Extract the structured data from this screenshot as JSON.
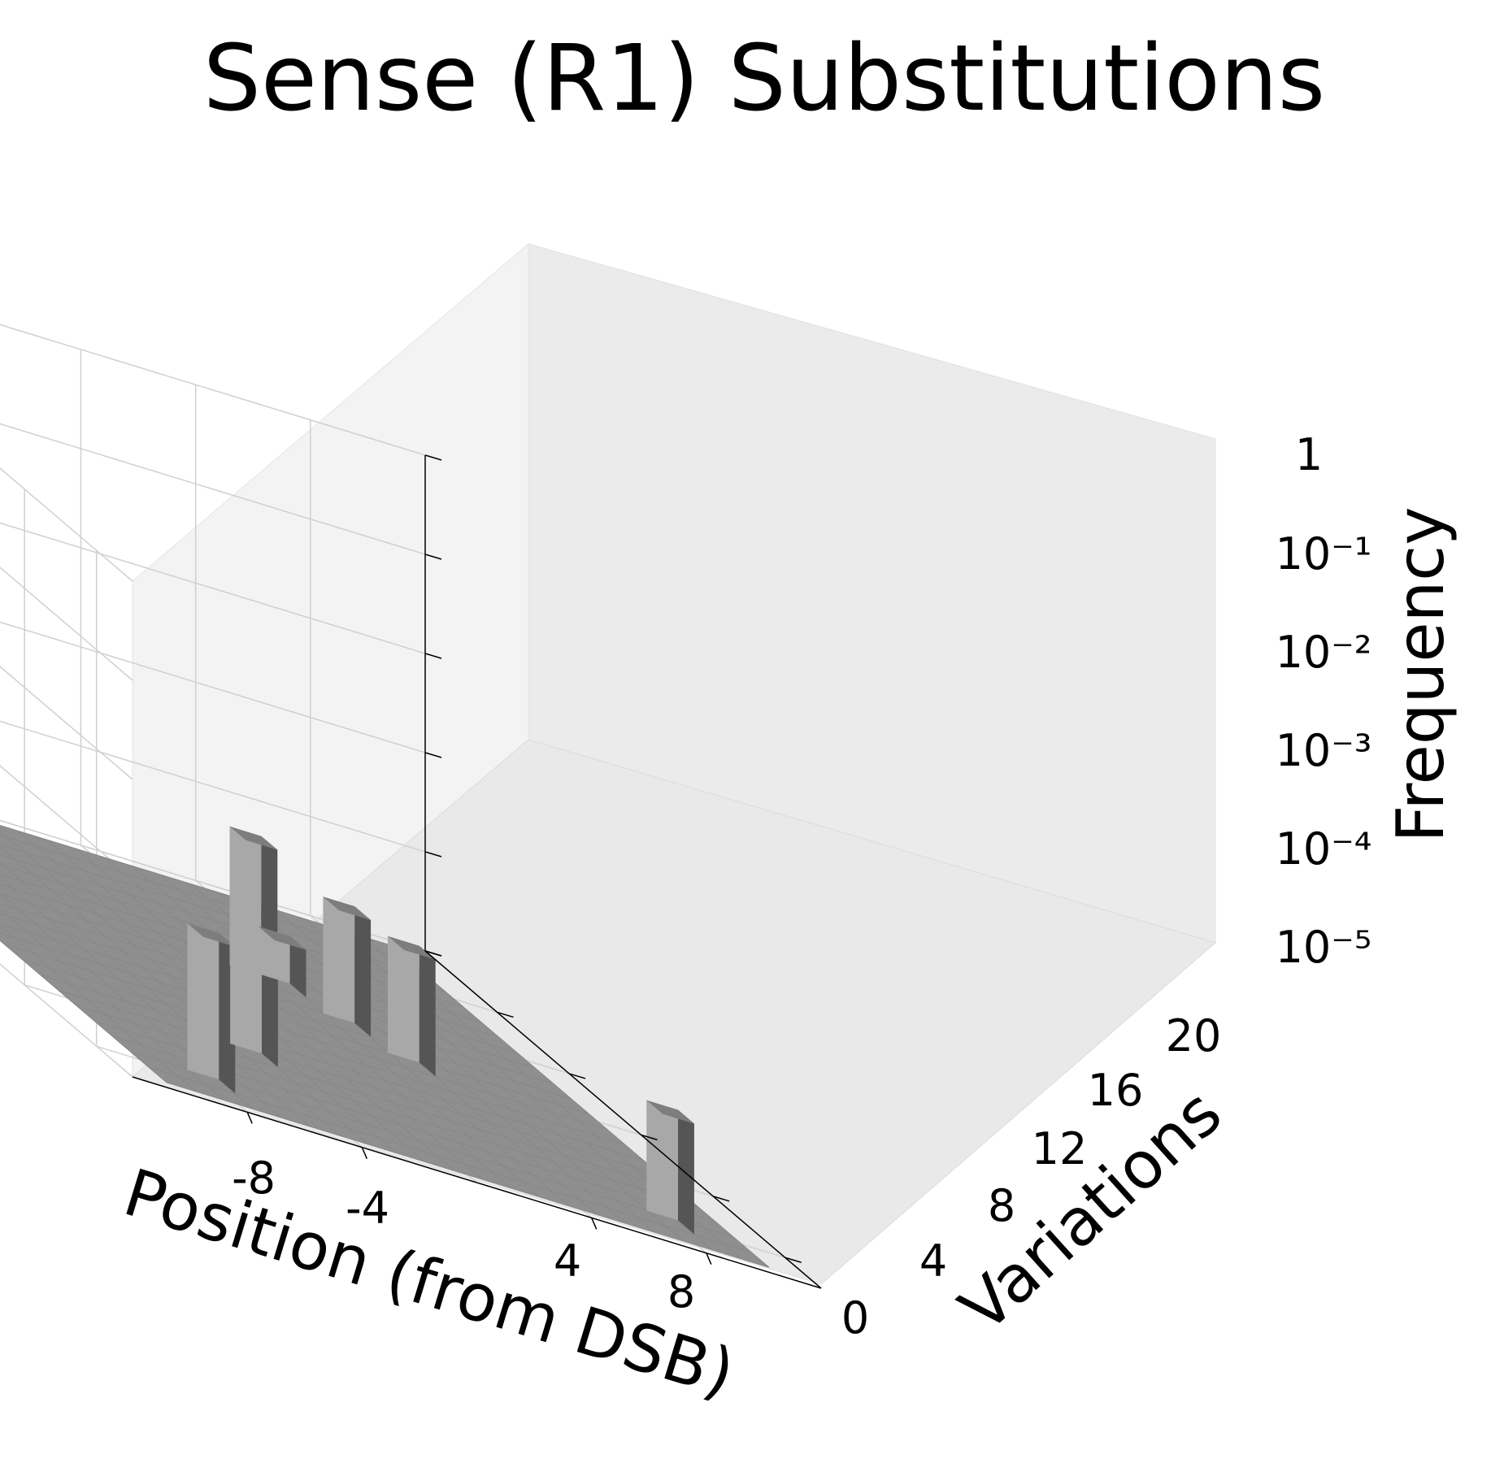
{
  "chart_data": {
    "type": "bar3d",
    "title": "Sense (R1) Substitutions",
    "xlabel": "Position (from DSB)",
    "ylabel": "Variations",
    "zlabel": "Frequency",
    "zscale": "log",
    "x_ticks": [
      "-8",
      "-4",
      "4",
      "8"
    ],
    "y_ticks": [
      "0",
      "4",
      "8",
      "12",
      "16",
      "20"
    ],
    "z_ticks": [
      "1",
      "10⁻¹",
      "10⁻²",
      "10⁻³",
      "10⁻⁴",
      "10⁻⁵"
    ],
    "xlim": [
      -12,
      12
    ],
    "ylim": [
      0,
      22
    ],
    "zlim_log10": [
      -5,
      0
    ],
    "bars": [
      {
        "x": -8,
        "y": 20,
        "frequency": 0.0003
      },
      {
        "x": -4,
        "y": 16,
        "frequency": 0.00015
      },
      {
        "x": 1,
        "y": 8,
        "frequency": 0.00025
      },
      {
        "x": 2,
        "y": 8,
        "frequency": 3e-05
      },
      {
        "x": 3,
        "y": 10,
        "frequency": 0.00015
      },
      {
        "x": 4,
        "y": 12,
        "frequency": 0.00015
      },
      {
        "x": 8,
        "y": 20,
        "frequency": 0.00013
      }
    ],
    "colors": {
      "floor": "#8f8f8f",
      "bar_front": "#a8a8a8",
      "bar_side": "#555555",
      "bar_top": "#7d7d7d"
    }
  }
}
